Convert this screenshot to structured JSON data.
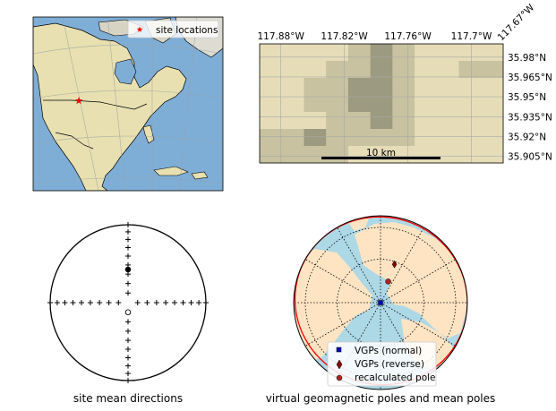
{
  "colors": {
    "ocean": "#7eaed6",
    "land": "#e8e0b0",
    "terrain_light": "#e6ddb8",
    "terrain_mid": "#c8c2a0",
    "terrain_dark": "#9c9a80",
    "site_marker": "#ff0000",
    "vgp_normal": "#0000cc",
    "vgp_reverse": "#8b0000",
    "recalc_pole": "#b22222",
    "a95_circle": "#ff0000",
    "globe_ocean": "#add8e6",
    "globe_land": "#ffe4c4"
  },
  "chart_data": [
    {
      "type": "scatter",
      "panel": "map-north-america",
      "legend": {
        "placement": "top-right",
        "entries": [
          "site locations"
        ]
      },
      "series": [
        {
          "name": "site locations",
          "marker": "star",
          "lon": [
            -117.8
          ],
          "lat": [
            35.95
          ]
        }
      ]
    },
    {
      "type": "heatmap",
      "panel": "local-terrain-map",
      "xticks": [
        "117.88°W",
        "117.82°W",
        "117.76°W",
        "117.7°W",
        "117.67°W"
      ],
      "yticks": [
        "35.98°N",
        "35.965°N",
        "35.95°N",
        "35.935°N",
        "35.92°N",
        "35.905°N"
      ],
      "xlim": [
        -117.9,
        -117.67
      ],
      "ylim": [
        35.9,
        35.99
      ],
      "scale_bar": "10 km",
      "grid": true
    },
    {
      "type": "scatter",
      "panel": "equal-area-site-directions",
      "title": "site mean directions",
      "projection": "equal-area stereonet",
      "points": [
        {
          "dec": 0,
          "inc": 55,
          "hemisphere": "lower",
          "filled": true
        },
        {
          "dec": 180,
          "inc": -80,
          "hemisphere": "upper",
          "filled": false
        }
      ]
    },
    {
      "type": "scatter",
      "panel": "orthographic-vgp-globe",
      "title": "virtual geomagnetic poles and mean poles",
      "legend": {
        "placement": "bottom-center",
        "entries": [
          "VGPs (normal)",
          "VGPs (reverse)",
          "recalculated pole"
        ]
      },
      "series": [
        {
          "name": "VGPs (normal)",
          "marker": "square",
          "points": [
            {
              "lon": 0,
              "lat": 90
            }
          ]
        },
        {
          "name": "VGPs (reverse)",
          "marker": "diamond",
          "points": [
            {
              "lon": 160,
              "lat": 62
            }
          ]
        },
        {
          "name": "recalculated pole",
          "marker": "circle",
          "points": [
            {
              "lon": 160,
              "lat": 75
            }
          ]
        }
      ],
      "a95_circle_deg": 85
    }
  ]
}
